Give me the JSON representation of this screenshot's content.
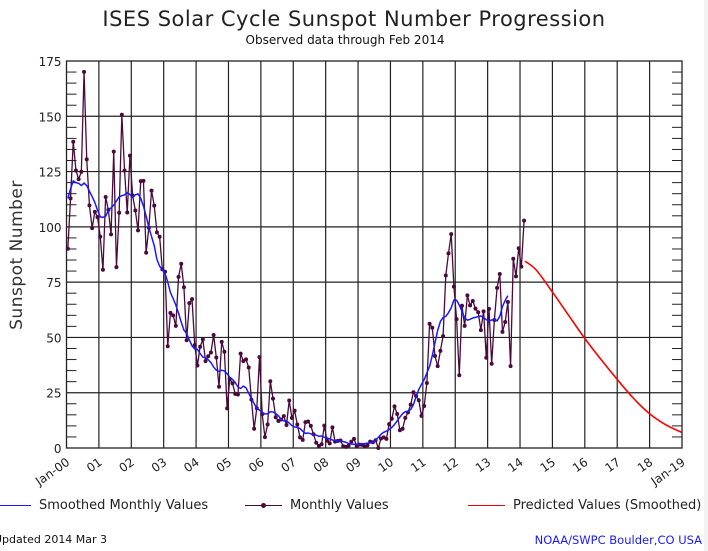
{
  "chart_data": {
    "type": "line",
    "title": "ISES Solar Cycle Sunspot Number Progression",
    "subtitle": "Observed data through Feb 2014",
    "xlabel": "",
    "ylabel": "Sunspot Number",
    "xlim": [
      "Jan-00",
      "Jan-19"
    ],
    "xlim_years": [
      2000,
      2019
    ],
    "ylim": [
      0,
      175
    ],
    "grid": true,
    "y_ticks": [
      0,
      25,
      50,
      75,
      100,
      125,
      150,
      175
    ],
    "y_minor_step": 5,
    "x_tick_labels": [
      "Jan-00",
      "01",
      "02",
      "03",
      "04",
      "05",
      "06",
      "07",
      "08",
      "09",
      "10",
      "11",
      "12",
      "13",
      "14",
      "15",
      "16",
      "17",
      "18",
      "Jan-19"
    ],
    "legend_placement": "bottom",
    "series": [
      {
        "name": "Monthly Values",
        "color": "#4a0a3c",
        "marker": "dot",
        "start": "2000-01",
        "values": [
          90.1,
          112.9,
          138.5,
          125.5,
          121.6,
          124.9,
          170.1,
          130.5,
          109.7,
          99.4,
          106.8,
          104.4,
          95.6,
          80.6,
          113.5,
          107.7,
          96.6,
          134.0,
          81.8,
          106.4,
          150.7,
          125.5,
          106.5,
          132.2,
          114.1,
          107.4,
          98.4,
          120.7,
          120.8,
          88.3,
          99.6,
          116.4,
          109.6,
          97.5,
          95.5,
          80.8,
          79.7,
          46.0,
          61.1,
          60.0,
          55.2,
          77.4,
          83.3,
          72.7,
          48.7,
          65.5,
          67.3,
          46.5,
          37.3,
          45.8,
          49.1,
          39.3,
          41.5,
          43.2,
          51.1,
          40.9,
          27.7,
          48.0,
          43.5,
          17.9,
          31.3,
          29.2,
          24.5,
          24.2,
          42.7,
          39.3,
          40.1,
          36.4,
          21.9,
          8.7,
          18.0,
          41.1,
          15.3,
          4.9,
          10.6,
          30.2,
          22.3,
          13.9,
          12.2,
          12.9,
          14.4,
          10.4,
          21.5,
          13.6,
          16.9,
          10.6,
          4.8,
          3.7,
          11.7,
          12.0,
          10.0,
          6.2,
          2.4,
          0.9,
          1.7,
          10.1,
          3.3,
          2.1,
          9.3,
          2.9,
          3.2,
          3.4,
          0.8,
          0.5,
          1.1,
          2.9,
          4.1,
          0.8,
          1.5,
          1.4,
          0.7,
          1.2,
          2.9,
          2.6,
          3.5,
          0.0,
          4.3,
          4.8,
          4.1,
          10.8,
          13.2,
          18.8,
          15.4,
          8.0,
          8.7,
          13.6,
          16.1,
          19.6,
          25.2,
          23.5,
          21.6,
          14.5,
          19.0,
          29.4,
          56.2,
          54.4,
          41.6,
          37.0,
          43.9,
          50.6,
          78.0,
          88.0,
          96.7,
          73.0,
          58.3,
          32.9,
          64.3,
          55.2,
          69.0,
          64.5,
          66.5,
          63.0,
          61.4,
          53.3,
          61.8,
          40.8,
          62.9,
          38.1,
          57.9,
          72.4,
          78.7,
          52.5,
          57.0,
          66.0,
          37.0,
          85.6,
          77.6,
          90.3,
          82.0,
          102.8
        ]
      },
      {
        "name": "Smoothed Monthly Values",
        "color": "#1a1aff",
        "marker": "none",
        "start": "2000-01",
        "values": [
          112.9,
          117.2,
          120.8,
          120.0,
          119.7,
          118.7,
          119.8,
          118.6,
          116.1,
          113.7,
          111.0,
          107.5,
          104.5,
          104.3,
          104.8,
          107.5,
          108.6,
          109.8,
          111.7,
          113.6,
          114.1,
          114.5,
          115.5,
          114.6,
          113.3,
          114.5,
          114.9,
          112.9,
          109.4,
          104.9,
          99.7,
          95.6,
          91.5,
          85.2,
          82.2,
          80.7,
          78.9,
          75.1,
          70.3,
          67.6,
          64.6,
          61.0,
          56.9,
          53.3,
          51.8,
          48.9,
          46.2,
          44.8,
          44.6,
          42.7,
          41.1,
          40.8,
          39.9,
          38.6,
          36.6,
          35.2,
          34.7,
          35.2,
          34.8,
          33.6,
          31.9,
          31.0,
          29.6,
          27.6,
          26.9,
          28.0,
          27.2,
          24.8,
          22.3,
          20.1,
          17.9,
          17.1,
          16.1,
          15.4,
          15.5,
          16.4,
          16.3,
          15.6,
          14.6,
          12.9,
          12.2,
          12.3,
          11.3,
          10.1,
          9.5,
          9.3,
          8.8,
          7.6,
          6.6,
          6.8,
          6.4,
          5.9,
          5.8,
          5.3,
          5.4,
          4.8,
          4.6,
          4.1,
          3.6,
          3.4,
          3.3,
          3.2,
          2.9,
          2.6,
          2.0,
          1.8,
          1.7,
          1.7,
          1.8,
          1.9,
          2.0,
          2.2,
          2.3,
          2.7,
          3.6,
          4.8,
          6.2,
          7.1,
          7.6,
          8.3,
          9.3,
          10.6,
          12.3,
          14.0,
          15.5,
          16.4,
          16.7,
          17.4,
          19.6,
          23.2,
          26.5,
          28.8,
          30.9,
          34.0,
          36.9,
          41.8,
          47.6,
          53.2,
          57.2,
          59.0,
          59.5,
          61.2,
          63.4,
          66.9,
          66.8,
          64.6,
          61.8,
          58.9,
          57.8,
          58.2,
          58.8,
          59.1,
          59.4,
          59.7,
          59.0,
          58.0,
          57.4,
          57.9,
          58.2,
          57.5,
          59.5,
          64.0,
          66.7,
          68.9
        ]
      },
      {
        "name": "Predicted Values (Smoothed)",
        "color": "#ff0000",
        "marker": "none",
        "points": [
          {
            "year": 2014.15,
            "value": 84.5
          },
          {
            "year": 2014.5,
            "value": 80.5
          },
          {
            "year": 2015.0,
            "value": 70.5
          },
          {
            "year": 2015.5,
            "value": 60.0
          },
          {
            "year": 2016.0,
            "value": 49.5
          },
          {
            "year": 2016.5,
            "value": 40.0
          },
          {
            "year": 2017.0,
            "value": 31.0
          },
          {
            "year": 2017.5,
            "value": 22.5
          },
          {
            "year": 2018.0,
            "value": 15.5
          },
          {
            "year": 2018.5,
            "value": 10.5
          },
          {
            "year": 2019.0,
            "value": 7.0
          }
        ]
      }
    ]
  },
  "header": {
    "title": "ISES Solar Cycle Sunspot Number Progression",
    "subtitle": "Observed data through Feb 2014"
  },
  "legend": {
    "smoothed": "Smoothed Monthly Values",
    "monthly": "Monthly Values",
    "predicted": "Predicted Values (Smoothed)"
  },
  "footer": {
    "updated": "Updated 2014 Mar  3",
    "credit": "NOAA/SWPC Boulder,CO USA"
  }
}
